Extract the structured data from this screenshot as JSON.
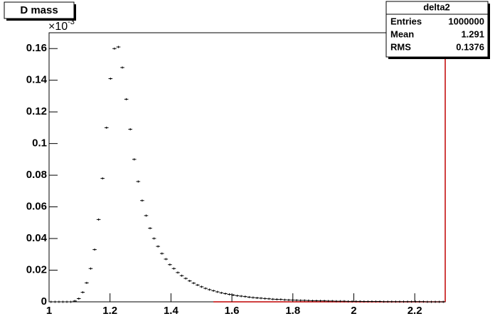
{
  "chart_data": {
    "type": "histogram",
    "title": "D mass",
    "axis_multiplier": "×10",
    "axis_multiplier_exponent": "-3",
    "stats": {
      "title": "delta2",
      "rows": [
        {
          "label": "Entries",
          "value": 1000000
        },
        {
          "label": "Mean",
          "value": 1.291
        },
        {
          "label": "RMS",
          "value": 0.1376
        }
      ]
    },
    "color": "#000000",
    "xlim": [
      1,
      2.3
    ],
    "ylim": [
      0,
      0.17
    ],
    "xticks": [
      1,
      1.2,
      1.4,
      1.6,
      1.8,
      2,
      2.2
    ],
    "yticks": [
      0,
      0.02,
      0.04,
      0.06,
      0.08,
      0.1,
      0.12,
      0.14,
      0.16
    ],
    "bins": [
      1,
      1.013,
      1.026,
      1.039,
      1.052,
      1.065,
      1.078,
      1.091,
      1.104,
      1.117,
      1.13,
      1.143,
      1.156,
      1.169,
      1.182,
      1.195,
      1.208,
      1.221,
      1.234,
      1.247,
      1.26,
      1.273,
      1.286,
      1.299,
      1.312,
      1.325,
      1.338,
      1.351,
      1.364,
      1.377,
      1.39,
      1.403,
      1.416,
      1.429,
      1.442,
      1.455,
      1.468,
      1.481,
      1.494,
      1.507,
      1.52,
      1.533,
      1.546,
      1.559,
      1.572,
      1.585,
      1.598,
      1.611,
      1.624,
      1.637,
      1.65,
      1.663,
      1.676,
      1.689,
      1.702,
      1.715,
      1.728,
      1.741,
      1.754,
      1.767,
      1.78,
      1.793,
      1.806,
      1.819,
      1.832,
      1.845,
      1.858,
      1.871,
      1.884,
      1.897,
      1.91,
      1.923,
      1.936,
      1.949,
      1.962,
      1.975,
      1.988,
      2.001,
      2.014,
      2.027,
      2.04,
      2.053,
      2.066,
      2.079,
      2.092,
      2.105,
      2.118,
      2.131,
      2.144,
      2.157,
      2.17,
      2.183,
      2.196,
      2.209,
      2.222,
      2.235,
      2.248,
      2.261,
      2.274,
      2.287,
      2.3
    ],
    "values": [
      0,
      0,
      0,
      0,
      0,
      0,
      0.0005,
      0.002,
      0.006,
      0.012,
      0.021,
      0.033,
      0.052,
      0.078,
      0.11,
      0.141,
      0.16,
      0.161,
      0.148,
      0.128,
      0.109,
      0.09,
      0.076,
      0.064,
      0.0545,
      0.0465,
      0.04,
      0.035,
      0.0305,
      0.027,
      0.0235,
      0.021,
      0.0185,
      0.0165,
      0.0148,
      0.0132,
      0.0118,
      0.0106,
      0.0095,
      0.0085,
      0.0077,
      0.007,
      0.0063,
      0.0057,
      0.0052,
      0.0047,
      0.0043,
      0.0039,
      0.0036,
      0.0033,
      0.003,
      0.0027,
      0.0025,
      0.0023,
      0.0021,
      0.0019,
      0.0017,
      0.0016,
      0.0015,
      0.0013,
      0.0012,
      0.0011,
      0.001,
      0.0009,
      0.0009,
      0.0008,
      0.0007,
      0.0007,
      0.0006,
      0.0006,
      0.0005,
      0.0005,
      0.0004,
      0.0004,
      0.0004,
      0.0003,
      0.0003,
      0.0003,
      0.0003,
      0.0002,
      0.0002,
      0.0002,
      0.0002,
      0.0002,
      0.0001,
      0.0001,
      0.0001,
      0.0001,
      0.0001,
      0.0001,
      0.0001,
      0.0001,
      0.0001,
      0.0001,
      0.0001,
      0,
      0,
      0,
      0,
      0
    ]
  }
}
